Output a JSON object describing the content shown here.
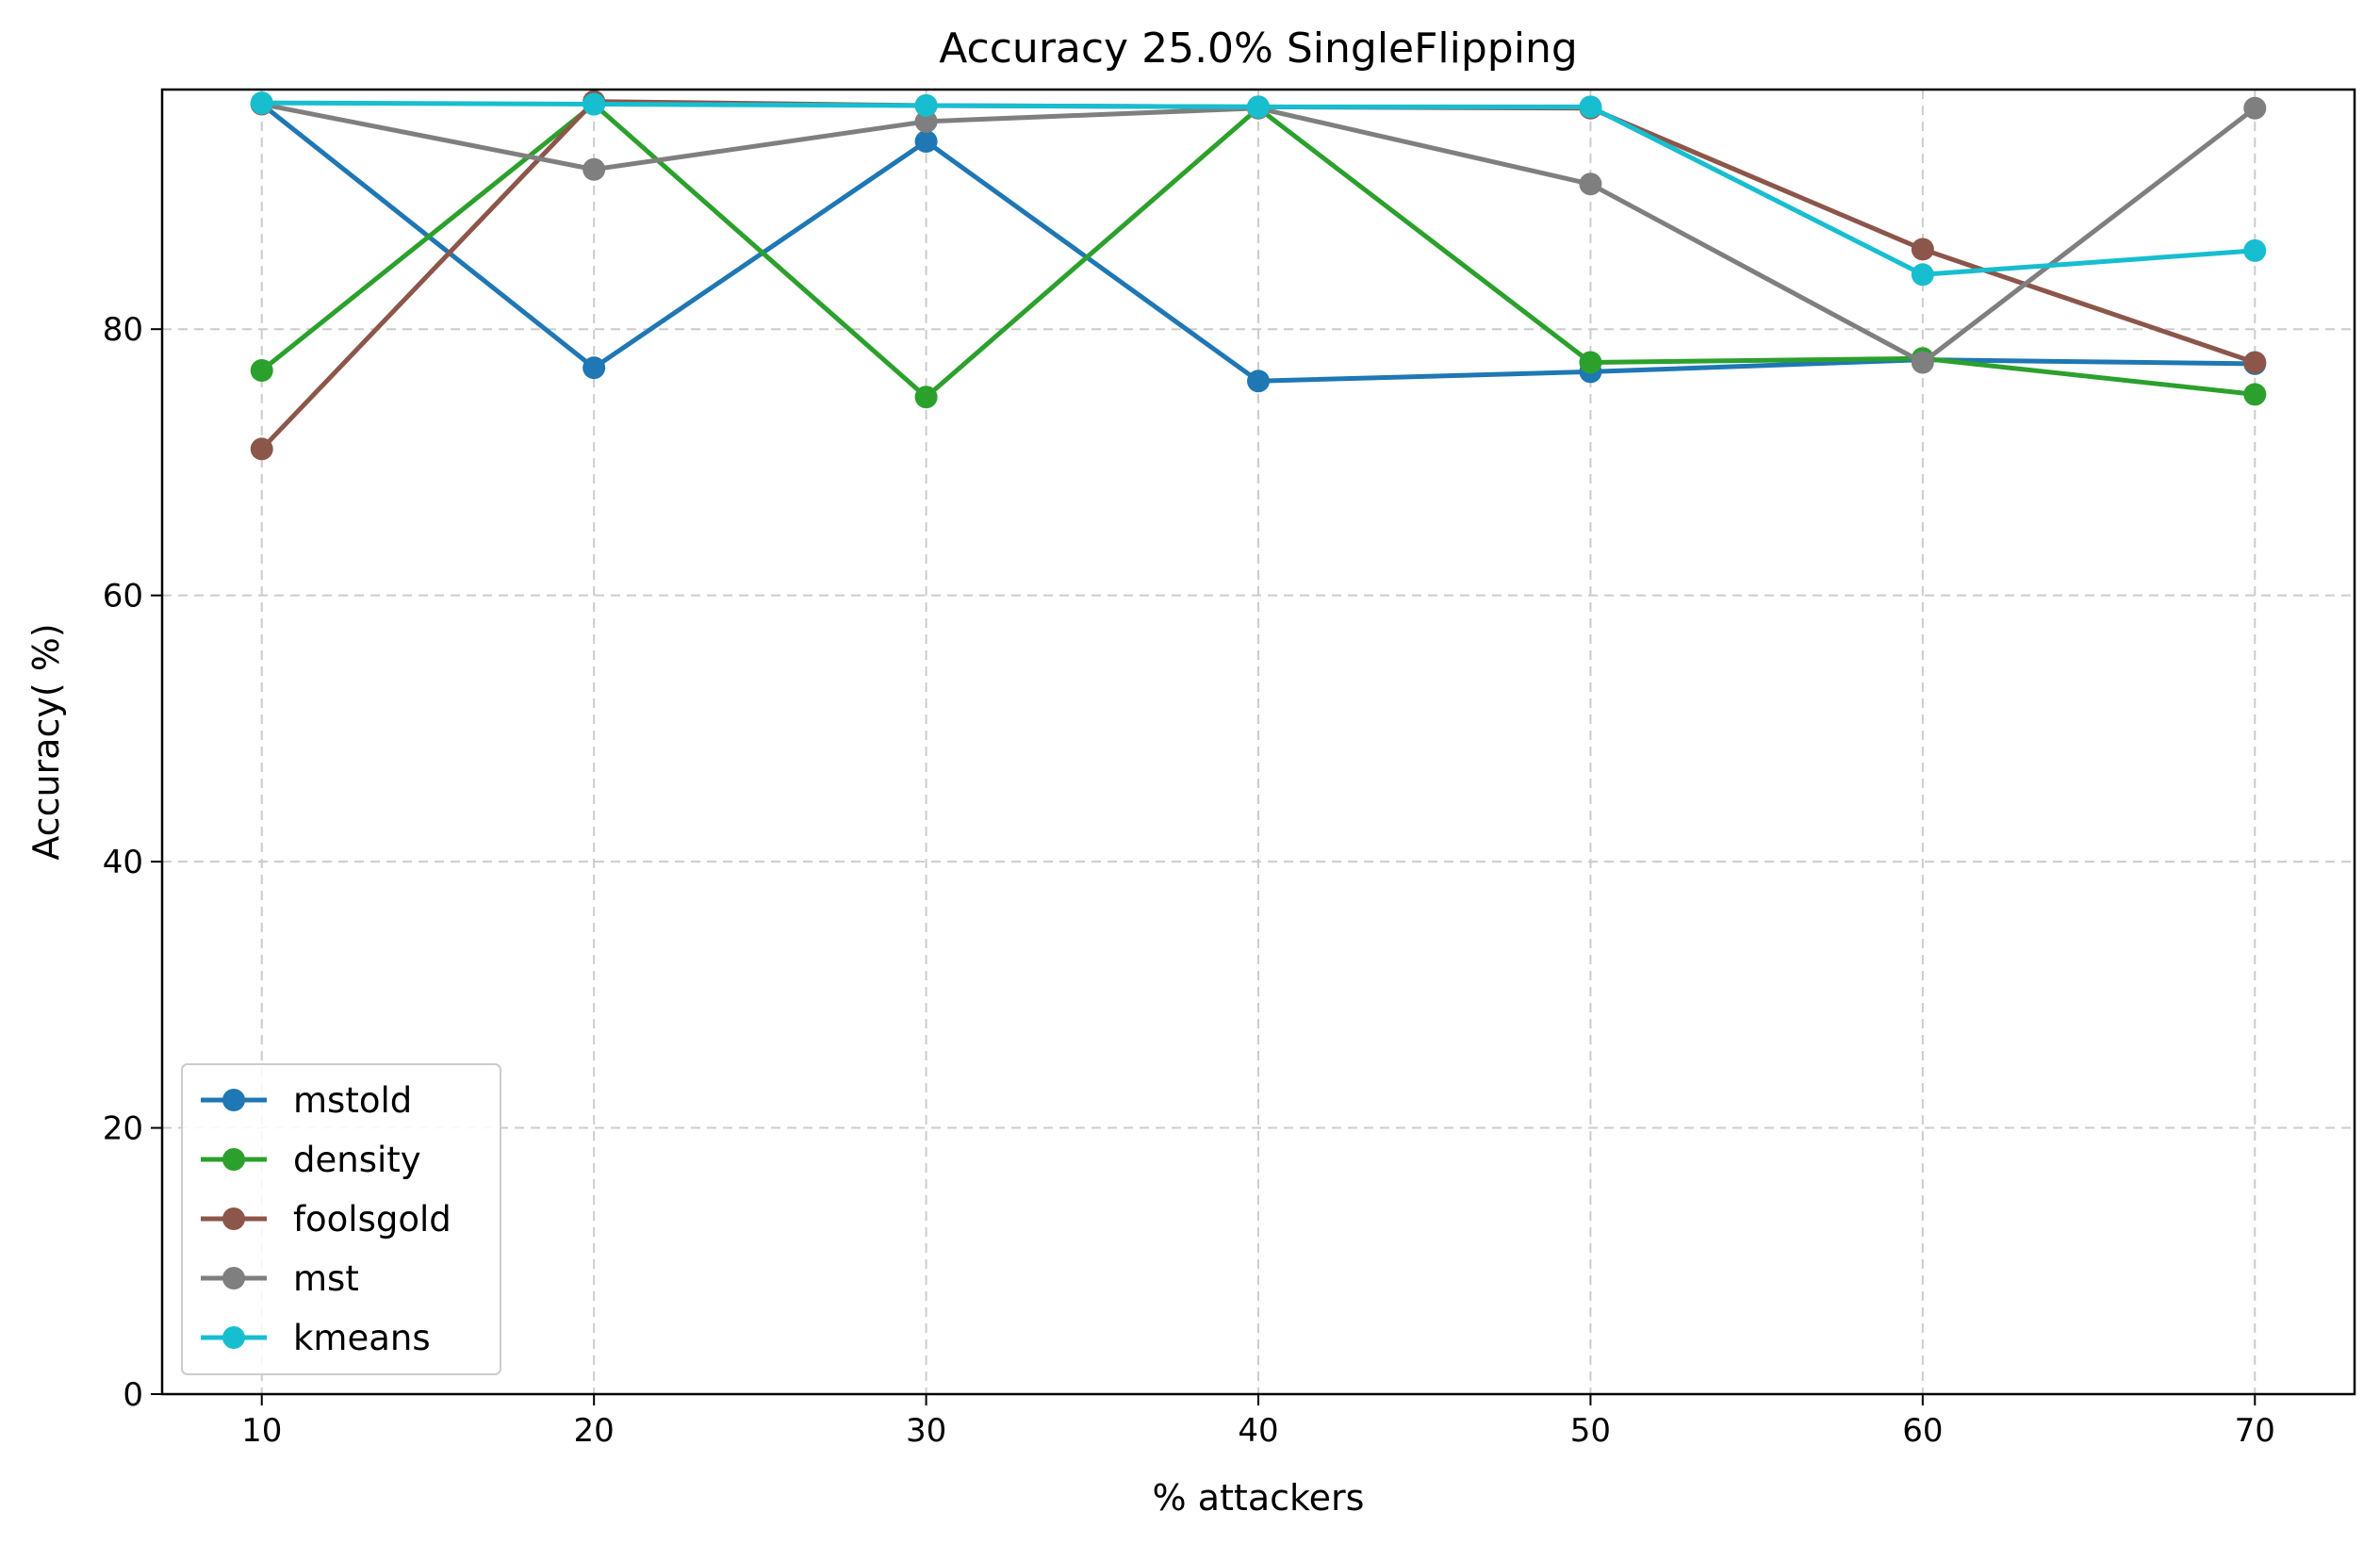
{
  "chart_data": {
    "type": "line",
    "title": "Accuracy 25.0% SingleFlipping",
    "xlabel": "% attackers",
    "ylabel": "Accuracy( %)",
    "x": [
      10,
      20,
      30,
      40,
      50,
      60,
      70
    ],
    "xlim": [
      7,
      73
    ],
    "ylim": [
      0,
      98
    ],
    "xticks": [
      10,
      20,
      30,
      40,
      50,
      60,
      70
    ],
    "yticks": [
      0,
      20,
      40,
      60,
      80
    ],
    "grid": true,
    "legend_position": "lower-left",
    "series": [
      {
        "name": "mstold",
        "color": "#1f77b4",
        "values": [
          96.9,
          77.1,
          94.1,
          76.1,
          76.8,
          77.7,
          77.4
        ]
      },
      {
        "name": "density",
        "color": "#2ca02c",
        "values": [
          76.9,
          96.9,
          74.9,
          96.6,
          77.5,
          77.8,
          75.1
        ]
      },
      {
        "name": "foolsgold",
        "color": "#8c564b",
        "values": [
          71.0,
          97.1,
          96.8,
          96.7,
          96.6,
          86.0,
          77.5
        ]
      },
      {
        "name": "mst",
        "color": "#7f7f7f",
        "values": [
          96.9,
          92.0,
          95.6,
          96.6,
          90.9,
          77.5,
          96.6
        ]
      },
      {
        "name": "kmeans",
        "color": "#17becf",
        "values": [
          97.0,
          96.9,
          96.8,
          96.7,
          96.7,
          84.1,
          85.9
        ]
      }
    ]
  }
}
